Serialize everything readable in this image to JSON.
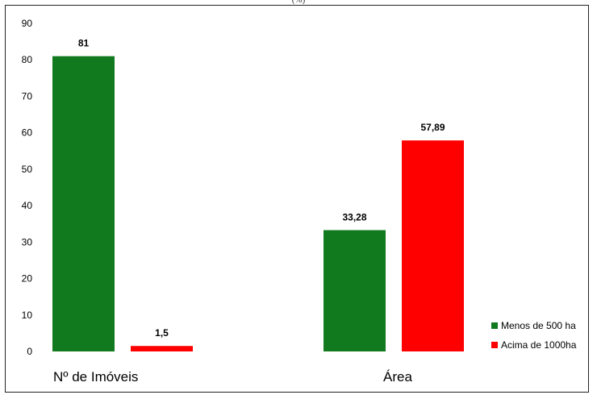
{
  "page": {
    "top_title_fragment": "(%)"
  },
  "chart_data": {
    "type": "bar",
    "categories": [
      "Nº de Imóveis",
      "Área"
    ],
    "series": [
      {
        "name": "Menos de 500 ha",
        "color": "#127a1e",
        "values": [
          81,
          33.28
        ],
        "labels": [
          "81",
          "33,28"
        ]
      },
      {
        "name": "Acima de 1000ha",
        "color": "#ff0000",
        "values": [
          1.5,
          57.89
        ],
        "labels": [
          "1,5",
          "57,89"
        ]
      }
    ],
    "ylim": [
      0,
      90
    ],
    "yticks": [
      0,
      10,
      20,
      30,
      40,
      50,
      60,
      70,
      80,
      90
    ],
    "grid": false,
    "legend": {
      "position": "bottom-right",
      "entries": [
        "Menos de 500 ha",
        "Acima de 1000ha"
      ]
    }
  }
}
